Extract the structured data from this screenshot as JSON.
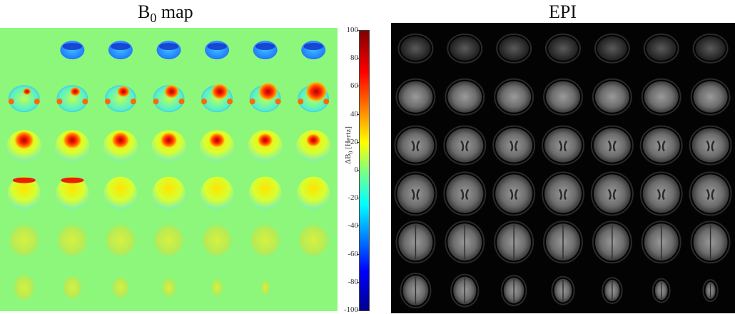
{
  "titles": {
    "b0_main": "B",
    "b0_sub": "0",
    "b0_rest": " map",
    "epi": "EPI"
  },
  "colorbar": {
    "ticks": [
      "100",
      "80",
      "60",
      "40",
      "20",
      "0",
      "-20",
      "-40",
      "-60",
      "-80",
      "-100"
    ],
    "label_main": "ΔB",
    "label_sub": "0",
    "label_rest": " [Hertz]"
  },
  "colors": {
    "b0_background": "#8cf77a",
    "epi_background": "#030303"
  }
}
